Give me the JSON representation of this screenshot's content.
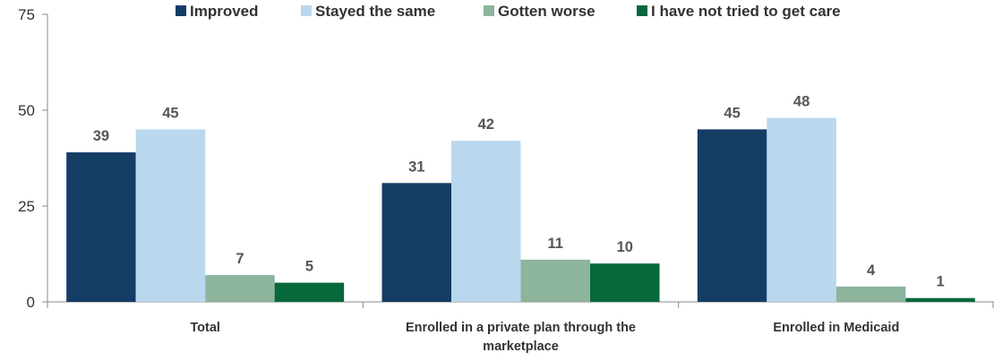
{
  "chart_data": {
    "type": "bar",
    "title": "",
    "xlabel": "",
    "ylabel": "",
    "ylim": [
      0,
      75
    ],
    "yticks": [
      0,
      25,
      50,
      75
    ],
    "grid": false,
    "legend_position": "top",
    "categories": [
      [
        "Total"
      ],
      [
        "Enrolled in a private plan through the",
        "marketplace"
      ],
      [
        "Enrolled in Medicaid"
      ]
    ],
    "series": [
      {
        "name": "Improved",
        "color": "#143d66",
        "values": [
          39,
          31,
          45
        ]
      },
      {
        "name": "Stayed the same",
        "color": "#b9d8ee",
        "values": [
          45,
          42,
          48
        ]
      },
      {
        "name": "Gotten worse",
        "color": "#8db49c",
        "values": [
          7,
          11,
          4
        ]
      },
      {
        "name": "I have not tried to get care",
        "color": "#07683c",
        "values": [
          5,
          10,
          1
        ]
      }
    ]
  }
}
